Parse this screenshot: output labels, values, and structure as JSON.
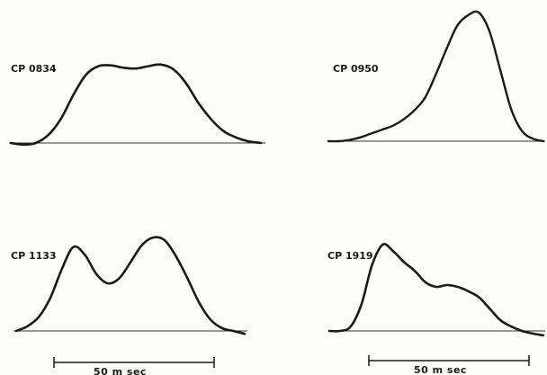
{
  "chart_data": [
    {
      "type": "line",
      "label": "CP 0834",
      "x": [
        0,
        5,
        10,
        15,
        20,
        25,
        30,
        35,
        40,
        45,
        50,
        55,
        60,
        65,
        70,
        75,
        80,
        85,
        90,
        95,
        100
      ],
      "y": [
        0,
        -0.02,
        0,
        0.1,
        0.3,
        0.6,
        0.85,
        0.96,
        0.97,
        0.94,
        0.93,
        0.96,
        0.98,
        0.92,
        0.75,
        0.5,
        0.3,
        0.15,
        0.07,
        0.02,
        0
      ]
    },
    {
      "type": "line",
      "label": "CP 0950",
      "x": [
        0,
        5,
        10,
        15,
        20,
        25,
        30,
        35,
        40,
        45,
        50,
        55,
        60,
        65,
        70,
        75,
        80,
        85,
        90,
        95,
        100
      ],
      "y": [
        0,
        0,
        0.01,
        0.03,
        0.06,
        0.09,
        0.12,
        0.17,
        0.24,
        0.34,
        0.52,
        0.72,
        0.9,
        0.98,
        1.0,
        0.85,
        0.55,
        0.25,
        0.08,
        0.02,
        0
      ]
    },
    {
      "type": "line",
      "label": "CP 1133",
      "x": [
        0,
        5,
        10,
        15,
        20,
        25,
        30,
        35,
        40,
        45,
        50,
        55,
        60,
        65,
        70,
        75,
        80,
        85,
        90,
        95,
        100
      ],
      "y": [
        0,
        0.05,
        0.15,
        0.35,
        0.65,
        0.88,
        0.8,
        0.6,
        0.5,
        0.55,
        0.72,
        0.9,
        0.98,
        0.95,
        0.78,
        0.55,
        0.3,
        0.12,
        0.03,
        0,
        -0.03
      ]
    },
    {
      "type": "line",
      "label": "CP 1919",
      "x": [
        0,
        5,
        10,
        15,
        20,
        25,
        30,
        35,
        40,
        45,
        50,
        55,
        60,
        65,
        70,
        75,
        80,
        85,
        90,
        95,
        100
      ],
      "y": [
        0,
        0,
        0.05,
        0.3,
        0.75,
        0.98,
        0.9,
        0.78,
        0.68,
        0.55,
        0.5,
        0.52,
        0.5,
        0.45,
        0.38,
        0.25,
        0.12,
        0.05,
        0,
        -0.03,
        -0.05
      ]
    }
  ],
  "scale_bars": [
    {
      "label": "50 m sec"
    },
    {
      "label": "50 m sec"
    }
  ],
  "colors": {
    "trace": "#1a1a1a",
    "baseline": "#333333",
    "background": "#fdfdfb"
  }
}
